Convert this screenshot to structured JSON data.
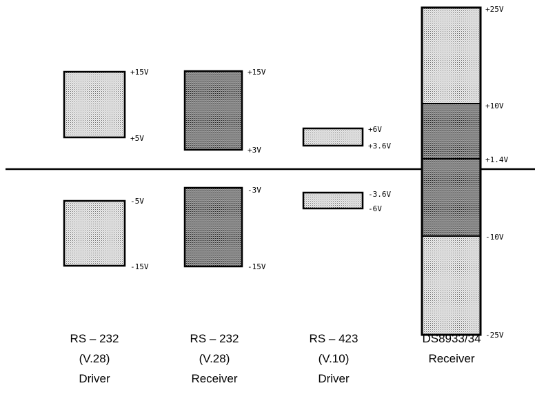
{
  "colors": {
    "light_fill": "#dcdcdc",
    "dark_fill": "#8c8c8c",
    "stroke": "#000000"
  },
  "columns": [
    {
      "id": "rs232-driver",
      "caption": [
        "RS – 232",
        "(V.28)",
        "Driver"
      ],
      "bars": [
        {
          "top": "+15V",
          "bottom": "+5V",
          "shade": "light"
        },
        {
          "top": "-5V",
          "bottom": "-15V",
          "shade": "light"
        }
      ]
    },
    {
      "id": "rs232-receiver",
      "caption": [
        "RS – 232",
        "(V.28)",
        "Receiver"
      ],
      "bars": [
        {
          "top": "+15V",
          "bottom": "+3V",
          "shade": "dark"
        },
        {
          "top": "-3V",
          "bottom": "-15V",
          "shade": "dark"
        }
      ]
    },
    {
      "id": "rs423-driver",
      "caption": [
        "RS – 423",
        "(V.10)",
        "Driver"
      ],
      "bars": [
        {
          "top": "+6V",
          "bottom": "+3.6V",
          "shade": "light"
        },
        {
          "top": "-3.6V",
          "bottom": "-6V",
          "shade": "light"
        }
      ]
    },
    {
      "id": "ds8933-receiver",
      "caption": [
        "DS8933/34",
        "Receiver"
      ],
      "bars": [
        {
          "top": "+25V",
          "bottom": "+10V",
          "shade": "light"
        },
        {
          "top": "+10V",
          "bottom": "+1.4V",
          "shade": "dark"
        },
        {
          "top": "+1.4V",
          "bottom": "-10V",
          "shade": "dark"
        },
        {
          "top": "-10V",
          "bottom": "-25V",
          "shade": "light"
        }
      ]
    }
  ]
}
